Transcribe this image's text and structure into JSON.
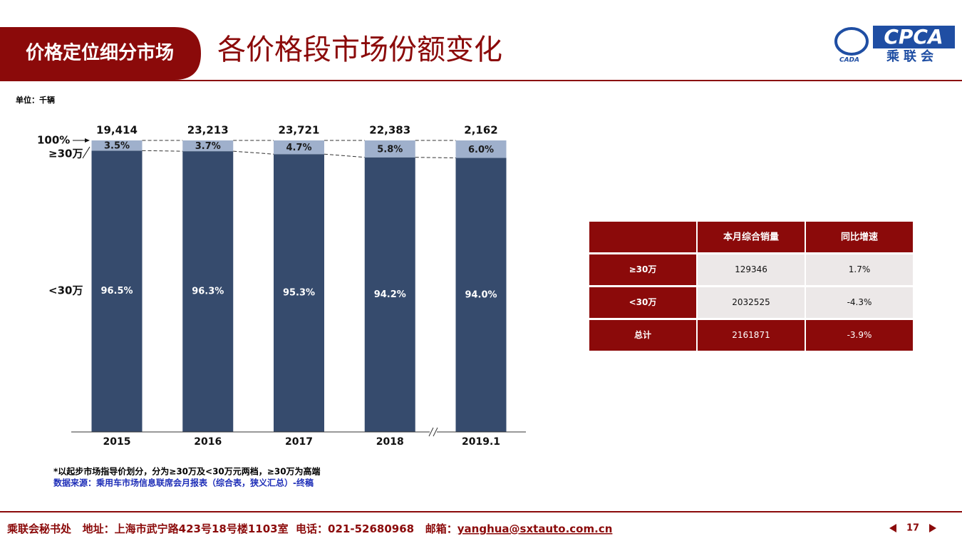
{
  "header": {
    "section": "价格定位细分市场",
    "title": "各价格段市场份额变化",
    "logo_text": "CPCA",
    "logo_subtext": "乘联会",
    "logo_mark": "CADA"
  },
  "unit": "单位：千辆",
  "chart_data": {
    "type": "stacked_bar_100",
    "categories": [
      "2015",
      "2016",
      "2017",
      "2018",
      "2019.1"
    ],
    "series": [
      {
        "name": "<30万",
        "color": "#364b6d",
        "values": [
          96.5,
          96.3,
          95.3,
          94.2,
          94.0
        ],
        "value_labels": [
          "96.5%",
          "96.3%",
          "95.3%",
          "94.2%",
          "94.0%"
        ]
      },
      {
        "name": "≥30万",
        "color": "#9fb0cc",
        "values": [
          3.5,
          3.7,
          4.7,
          5.8,
          6.0
        ],
        "value_labels": [
          "3.5%",
          "3.7%",
          "4.7%",
          "5.8%",
          "6.0%"
        ]
      }
    ],
    "totals": [
      19414,
      23213,
      23721,
      22383,
      2162
    ],
    "total_labels": [
      "19,414",
      "23,213",
      "23,721",
      "22,383",
      "2,162"
    ],
    "ylim": [
      0,
      100
    ],
    "yticks": [
      {
        "value": 100,
        "label": "100%"
      }
    ]
  },
  "table": {
    "header": [
      "本月综合销量",
      "同比增速"
    ],
    "rows": [
      [
        "≥30万",
        "129346",
        "1.7%"
      ],
      [
        "<30万",
        "2032525",
        "-4.3%"
      ],
      [
        "总计",
        "2161871",
        "-3.9%"
      ]
    ]
  },
  "notes": [
    "*以起步市场指导价划分，分为≥30万及<30万元两档，≥30万为高端",
    "数据来源：乘用车市场信息联席会月报表（综合表，狭义汇总）-终稿"
  ],
  "footer": {
    "text": "乘联会秘书处   地址：上海市武宁路423号18号楼1103室  电话：021-52680968   邮箱：",
    "email": "yanghua@sxtauto.com.cn",
    "page": "17"
  }
}
